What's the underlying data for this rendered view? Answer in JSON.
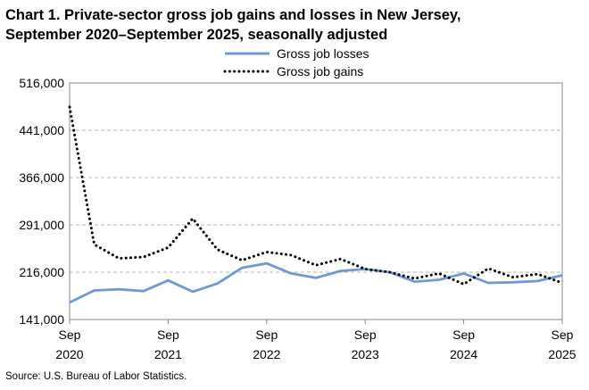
{
  "title_line1": "Chart 1. Private-sector gross job gains and losses in New Jersey,",
  "title_line2": "September 2020–September 2025, seasonally adjusted",
  "source": "Source: U.S. Bureau of Labor Statistics.",
  "chart_data": {
    "type": "line",
    "title": "Chart 1. Private-sector gross job gains and losses in New Jersey, September 2020–September 2025, seasonally adjusted",
    "xlabel": "",
    "ylabel": "",
    "ylim": [
      141000,
      516000
    ],
    "yticks": [
      "516,000",
      "441,000",
      "366,000",
      "291,000",
      "216,000",
      "141,000"
    ],
    "ytick_values": [
      516000,
      441000,
      366000,
      291000,
      216000,
      141000
    ],
    "xticks": [
      {
        "month": "Sep",
        "year": "2020",
        "index": 0
      },
      {
        "month": "Sep",
        "year": "2021",
        "index": 4
      },
      {
        "month": "Sep",
        "year": "2022",
        "index": 8
      },
      {
        "month": "Sep",
        "year": "2023",
        "index": 12
      },
      {
        "month": "Sep",
        "year": "2024",
        "index": 16
      },
      {
        "month": "Sep",
        "year": "2025",
        "index": 20
      }
    ],
    "x": [
      "Sep 2020",
      "Dec 2020",
      "Mar 2021",
      "Jun 2021",
      "Sep 2021",
      "Dec 2021",
      "Mar 2022",
      "Jun 2022",
      "Sep 2022",
      "Dec 2022",
      "Mar 2023",
      "Jun 2023",
      "Sep 2023",
      "Dec 2023",
      "Mar 2024",
      "Jun 2024",
      "Sep 2024",
      "Dec 2024",
      "Mar 2025",
      "Jun 2025",
      "Sep 2025"
    ],
    "grid": "horizontal dashed",
    "legend_position": "top",
    "series": [
      {
        "name": "Gross job losses",
        "color": "#6e99d4",
        "style": "solid",
        "values": [
          168000,
          187000,
          189000,
          186000,
          203000,
          185000,
          198000,
          223000,
          230000,
          214000,
          207000,
          218000,
          221000,
          216000,
          201000,
          204000,
          214000,
          199000,
          200000,
          202000,
          211000
        ]
      },
      {
        "name": "Gross job gains",
        "color": "#000000",
        "style": "dotted",
        "values": [
          478000,
          260000,
          238000,
          240000,
          255000,
          301000,
          252000,
          235000,
          248000,
          243000,
          227000,
          237000,
          221000,
          216000,
          206000,
          214000,
          197000,
          222000,
          208000,
          213000,
          199000
        ]
      }
    ]
  }
}
